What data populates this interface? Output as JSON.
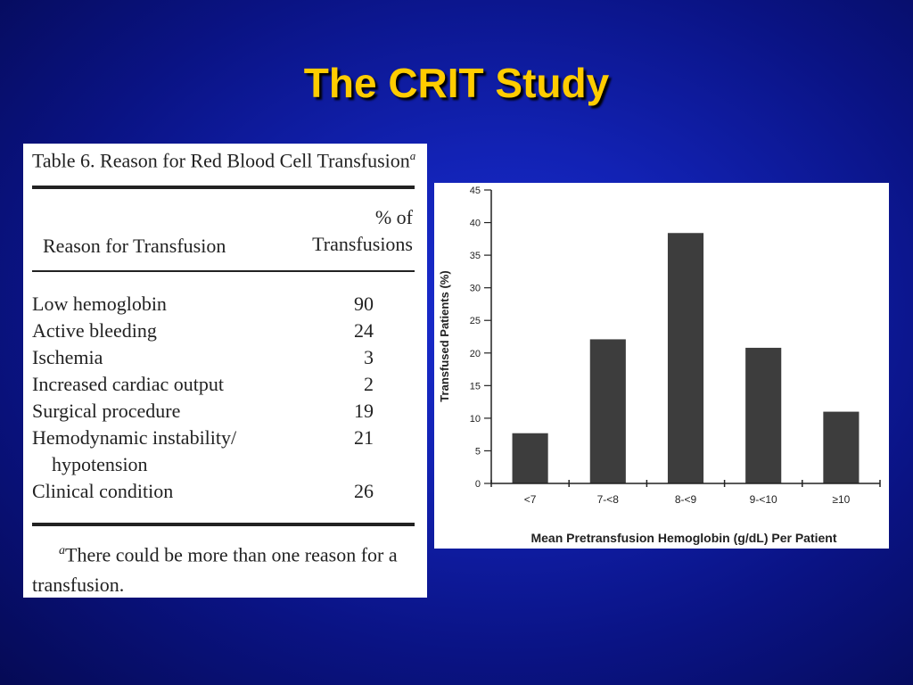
{
  "slide": {
    "title": "The CRIT Study",
    "title_color": "#ffcc00"
  },
  "table": {
    "caption": "Table 6. Reason for Red Blood Cell Transfusion",
    "caption_marker": "a",
    "col_reason": "Reason for Transfusion",
    "col_pct_line1": "% of",
    "col_pct_line2": "Transfusions",
    "rows": [
      {
        "label": "Low hemoglobin",
        "value": "90"
      },
      {
        "label": "Active bleeding",
        "value": "24"
      },
      {
        "label": "Ischemia",
        "value": "3"
      },
      {
        "label": "Increased cardiac output",
        "value": "2"
      },
      {
        "label": "Surgical procedure",
        "value": "19"
      },
      {
        "label": "Hemodynamic instability/",
        "label_line2": "hypotension",
        "value": "21"
      },
      {
        "label": "Clinical condition",
        "value": "26"
      }
    ],
    "footnote_marker": "a",
    "footnote": "There could be more than one reason for a transfusion."
  },
  "chart_data": {
    "type": "bar",
    "categories": [
      "<7",
      "7-<8",
      "8-<9",
      "9-<10",
      "≥10"
    ],
    "values": [
      7.7,
      22.1,
      38.4,
      20.8,
      11.0
    ],
    "title": "",
    "xlabel": "Mean Pretransfusion Hemoglobin (g/dL) Per Patient",
    "ylabel": "Transfused Patients (%)",
    "ylim": [
      0,
      45
    ],
    "yticks": [
      0,
      5,
      10,
      15,
      20,
      25,
      30,
      35,
      40,
      45
    ],
    "grid": false,
    "bar_color": "#3d3d3d"
  }
}
